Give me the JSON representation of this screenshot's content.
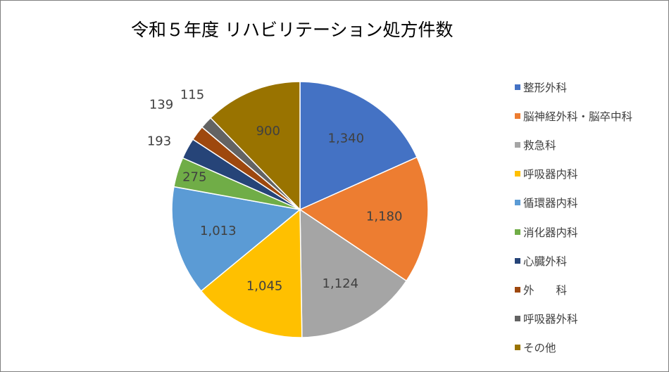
{
  "chart_data": {
    "type": "pie",
    "title": "令和５年度 リハビリテーション処方件数",
    "categories": [
      "整形外科",
      "脳神経外科・脳卒中科",
      "救急科",
      "呼吸器内科",
      "循環器内科",
      "消化器内科",
      "心臓外科",
      "外　　科",
      "呼吸器外科",
      "その他"
    ],
    "values": [
      1340,
      1180,
      1124,
      1045,
      1013,
      275,
      193,
      139,
      115,
      900
    ],
    "value_labels": [
      "1,340",
      "1,180",
      "1,124",
      "1,045",
      "1,013",
      "275",
      "193",
      "139",
      "115",
      "900"
    ],
    "colors": [
      "#4472C4",
      "#ED7D31",
      "#A5A5A5",
      "#FFC000",
      "#5B9BD5",
      "#70AD47",
      "#264478",
      "#9E480E",
      "#636363",
      "#997300"
    ],
    "start_angle": "12 o'clock",
    "direction": "clockwise",
    "legend_position": "right",
    "label_colors": {
      "inside": "#404040",
      "outside": "#404040"
    }
  }
}
